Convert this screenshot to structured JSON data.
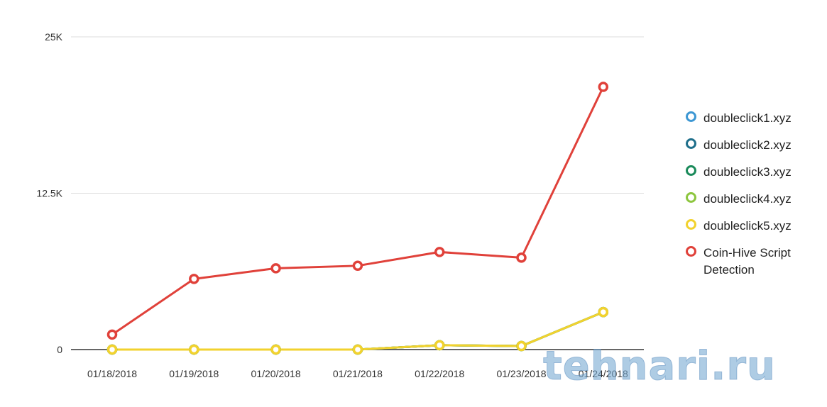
{
  "chart_data": {
    "type": "line",
    "categories": [
      "01/18/2018",
      "01/19/2018",
      "01/20/2018",
      "01/21/2018",
      "01/22/2018",
      "01/23/2018",
      "01/24/2018"
    ],
    "y_ticks": [
      "0",
      "12.5K",
      "25K"
    ],
    "ylim": [
      0,
      25000
    ],
    "grid": true,
    "legend_position": "right",
    "series": [
      {
        "name": "doubleclick1.xyz",
        "color": "#3d97d3",
        "values": [
          0,
          0,
          0,
          0,
          350,
          280,
          3000
        ]
      },
      {
        "name": "doubleclick2.xyz",
        "color": "#1f6f8b",
        "values": [
          0,
          0,
          0,
          0,
          350,
          280,
          3000
        ]
      },
      {
        "name": "doubleclick3.xyz",
        "color": "#1a8a5a",
        "values": [
          0,
          0,
          0,
          0,
          350,
          280,
          3000
        ]
      },
      {
        "name": "doubleclick4.xyz",
        "color": "#8dc63f",
        "values": [
          0,
          0,
          0,
          0,
          350,
          280,
          3000
        ]
      },
      {
        "name": "doubleclick5.xyz",
        "color": "#f2d22e",
        "values": [
          0,
          0,
          0,
          0,
          350,
          280,
          3000
        ]
      },
      {
        "name": "Coin-Hive Script Detection",
        "color": "#e0413a",
        "values": [
          1200,
          5650,
          6500,
          6700,
          7800,
          7350,
          21000
        ]
      }
    ]
  },
  "watermark": "tehnari.ru"
}
